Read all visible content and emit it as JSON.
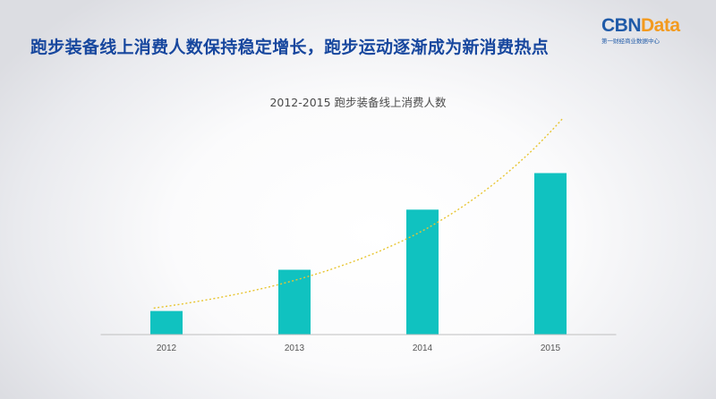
{
  "headline": "跑步装备线上消费人数保持稳定增长，跑步运动逐渐成为新消费热点",
  "logo": {
    "part1": "CBN",
    "part2": "Data",
    "subtitle": "第一财经商业数据中心"
  },
  "colors": {
    "bar": "#10c2c0",
    "trendline": "#e8c531",
    "headline": "#17479e",
    "axis": "#bfbfbf"
  },
  "chart_data": {
    "type": "bar",
    "title": "2012-2015 跑步装备线上消费人数",
    "categories": [
      "2012",
      "2013",
      "2014",
      "2015"
    ],
    "values": [
      1,
      2.75,
      5.3,
      6.85
    ],
    "ylim": [
      0,
      8.5
    ],
    "trendline": {
      "type": "exponential",
      "values": [
        1.2,
        2.3,
        4.4,
        8.6
      ],
      "extends": [
        -0.1,
        3.1
      ]
    },
    "xlabel": "",
    "ylabel": "",
    "grid": false,
    "legend": "none"
  }
}
